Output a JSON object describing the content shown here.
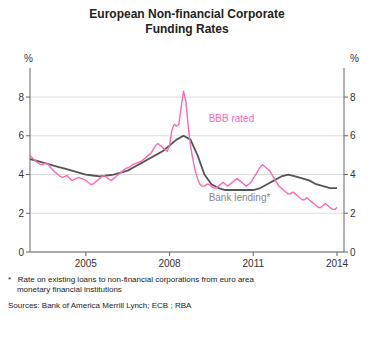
{
  "chart_data": {
    "type": "line",
    "title": "European Non-financial Corporate\nFunding Rates",
    "ylabel": "%",
    "y2label": "%",
    "xlim": [
      2003.0,
      2014.25
    ],
    "xticks": [
      2005,
      2008,
      2011,
      2014
    ],
    "ylim": [
      0,
      9.5
    ],
    "yticks": [
      0,
      2,
      4,
      6,
      8
    ],
    "y2lim": [
      0,
      9.5
    ],
    "y2ticks": [
      0,
      2,
      4,
      6,
      8
    ],
    "grid": true,
    "series": [
      {
        "color": "#FF69B4",
        "x": [
          2003.0,
          2003.083,
          2003.167,
          2003.25,
          2003.333,
          2003.417,
          2003.5,
          2003.583,
          2003.667,
          2003.75,
          2003.833,
          2003.917,
          2004.0,
          2004.083,
          2004.167,
          2004.25,
          2004.333,
          2004.417,
          2004.5,
          2004.583,
          2004.667,
          2004.75,
          2004.833,
          2004.917,
          2005.0,
          2005.083,
          2005.167,
          2005.25,
          2005.333,
          2005.417,
          2005.5,
          2005.583,
          2005.667,
          2005.75,
          2005.833,
          2005.917,
          2006.0,
          2006.083,
          2006.167,
          2006.25,
          2006.333,
          2006.417,
          2006.5,
          2006.583,
          2006.667,
          2006.75,
          2006.833,
          2006.917,
          2007.0,
          2007.083,
          2007.167,
          2007.25,
          2007.333,
          2007.417,
          2007.5,
          2007.583,
          2007.667,
          2007.75,
          2007.833,
          2007.917,
          2008.0,
          2008.083,
          2008.167,
          2008.25,
          2008.333,
          2008.417,
          2008.5,
          2008.583,
          2008.667,
          2008.75,
          2008.833,
          2008.917,
          2009.0,
          2009.083,
          2009.167,
          2009.25,
          2009.333,
          2009.417,
          2009.5,
          2009.583,
          2009.667,
          2009.75,
          2009.833,
          2009.917,
          2010.0,
          2010.083,
          2010.167,
          2010.25,
          2010.333,
          2010.417,
          2010.5,
          2010.583,
          2010.667,
          2010.75,
          2010.833,
          2010.917,
          2011.0,
          2011.083,
          2011.167,
          2011.25,
          2011.333,
          2011.417,
          2011.5,
          2011.583,
          2011.667,
          2011.75,
          2011.833,
          2011.917,
          2012.0,
          2012.083,
          2012.167,
          2012.25,
          2012.333,
          2012.417,
          2012.5,
          2012.583,
          2012.667,
          2012.75,
          2012.833,
          2012.917,
          2013.0,
          2013.083,
          2013.167,
          2013.25,
          2013.333,
          2013.417,
          2013.5,
          2013.583,
          2013.667,
          2013.75,
          2013.833,
          2013.917,
          2014.0
        ],
        "values": [
          5.0,
          4.85,
          4.75,
          4.65,
          4.55,
          4.5,
          4.55,
          4.6,
          4.5,
          4.35,
          4.2,
          4.1,
          4.0,
          3.9,
          3.85,
          3.9,
          3.95,
          3.8,
          3.7,
          3.75,
          3.8,
          3.85,
          3.8,
          3.75,
          3.7,
          3.6,
          3.5,
          3.5,
          3.6,
          3.7,
          3.8,
          3.9,
          3.95,
          3.85,
          3.75,
          3.7,
          3.8,
          3.9,
          4.0,
          4.1,
          4.2,
          4.3,
          4.35,
          4.4,
          4.5,
          4.55,
          4.6,
          4.65,
          4.7,
          4.8,
          4.9,
          5.0,
          5.1,
          5.3,
          5.5,
          5.6,
          5.5,
          5.4,
          5.3,
          5.2,
          5.5,
          6.3,
          6.6,
          6.5,
          6.6,
          7.5,
          8.3,
          7.8,
          6.5,
          5.5,
          4.8,
          4.2,
          3.8,
          3.5,
          3.4,
          3.4,
          3.5,
          3.5,
          3.4,
          3.3,
          3.3,
          3.4,
          3.5,
          3.6,
          3.5,
          3.4,
          3.5,
          3.6,
          3.7,
          3.8,
          3.7,
          3.6,
          3.5,
          3.4,
          3.5,
          3.6,
          3.8,
          4.0,
          4.2,
          4.4,
          4.5,
          4.4,
          4.3,
          4.2,
          4.0,
          3.8,
          3.6,
          3.4,
          3.3,
          3.2,
          3.1,
          3.0,
          3.0,
          3.1,
          3.0,
          2.9,
          2.8,
          2.7,
          2.7,
          2.8,
          2.7,
          2.6,
          2.5,
          2.4,
          2.3,
          2.3,
          2.4,
          2.5,
          2.4,
          2.3,
          2.2,
          2.2,
          2.3
        ]
      },
      {
        "color": "#555555",
        "x": [
          2003.0,
          2003.25,
          2003.5,
          2003.75,
          2004.0,
          2004.25,
          2004.5,
          2004.75,
          2005.0,
          2005.25,
          2005.5,
          2005.75,
          2006.0,
          2006.25,
          2006.5,
          2006.75,
          2007.0,
          2007.25,
          2007.5,
          2007.75,
          2008.0,
          2008.25,
          2008.5,
          2008.75,
          2009.0,
          2009.25,
          2009.5,
          2009.75,
          2010.0,
          2010.25,
          2010.5,
          2010.75,
          2011.0,
          2011.25,
          2011.5,
          2011.75,
          2012.0,
          2012.25,
          2012.5,
          2012.75,
          2013.0,
          2013.25,
          2013.5,
          2013.75,
          2014.0
        ],
        "values": [
          4.8,
          4.7,
          4.6,
          4.5,
          4.4,
          4.3,
          4.2,
          4.1,
          4.0,
          3.95,
          3.9,
          3.95,
          4.0,
          4.1,
          4.2,
          4.4,
          4.6,
          4.8,
          5.0,
          5.2,
          5.5,
          5.8,
          6.0,
          5.8,
          5.0,
          4.0,
          3.5,
          3.3,
          3.2,
          3.2,
          3.2,
          3.2,
          3.2,
          3.3,
          3.5,
          3.7,
          3.9,
          4.0,
          3.9,
          3.8,
          3.7,
          3.5,
          3.4,
          3.3,
          3.3
        ]
      }
    ],
    "annotations": [
      {
        "text": "BBB rated",
        "x": 2009.4,
        "y": 6.7,
        "color": "#FF69B4"
      },
      {
        "text": "Bank lending*",
        "x": 2009.4,
        "y": 2.65,
        "color": "#888888"
      }
    ],
    "footnotes": [
      "*   Rate on existing loans to non-financial corporations from euro area\n    monetary financial institutions",
      "Sources: Bank of America Merrill Lynch; ECB ; RBA"
    ]
  }
}
